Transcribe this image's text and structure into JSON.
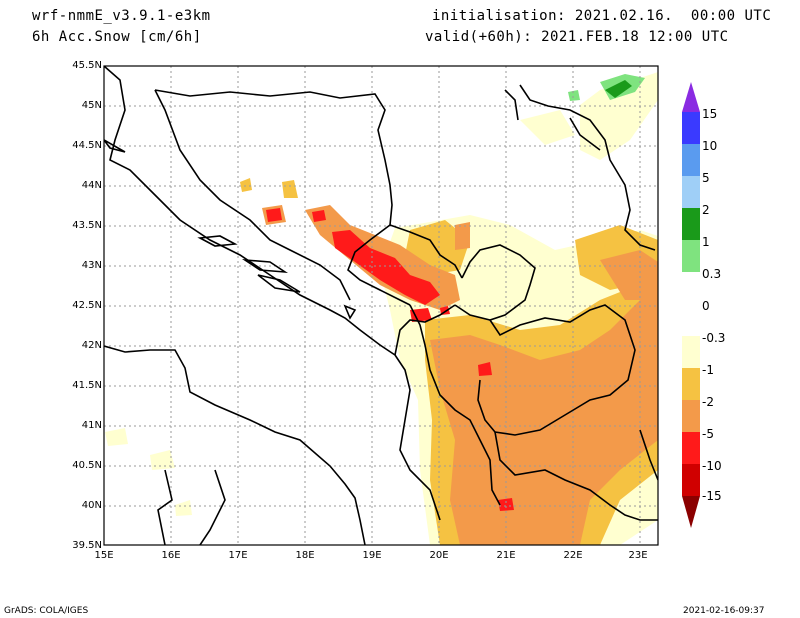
{
  "header": {
    "model": "wrf-nmmE_v3.9.1-e3km",
    "variable": "6h Acc.Snow [cm/6h]",
    "initialisation": "initialisation: 2021.02.16.  00:00 UTC",
    "valid": "valid(+60h): 2021.FEB.18 12:00 UTC"
  },
  "map": {
    "lat_labels": [
      "45.5N",
      "45N",
      "44.5N",
      "44N",
      "43.5N",
      "43N",
      "42.5N",
      "42N",
      "41.5N",
      "41N",
      "40.5N",
      "40N",
      "39.5N"
    ],
    "lon_labels": [
      "15E",
      "16E",
      "17E",
      "18E",
      "19E",
      "20E",
      "21E",
      "22E",
      "23E"
    ],
    "extent": {
      "lon": [
        15,
        23.3
      ],
      "lat": [
        39.5,
        45.5
      ]
    }
  },
  "colorbar": {
    "labels": [
      "15",
      "10",
      "5",
      "2",
      "1",
      "0.3",
      "0",
      "-0.3",
      "-1",
      "-2",
      "-5",
      "-10",
      "-15"
    ],
    "colors": [
      "#8a2be2",
      "#3a3aff",
      "#5a9bef",
      "#9fcff7",
      "#1a9a1a",
      "#7fe37f",
      "#ffffff",
      "#ffffd0",
      "#f5c242",
      "#f39a4a",
      "#ff1a1a",
      "#d00000",
      "#8b0000"
    ]
  },
  "footer": {
    "left": "GrADS: COLA/IGES",
    "right": "2021-02-16-09:37"
  }
}
